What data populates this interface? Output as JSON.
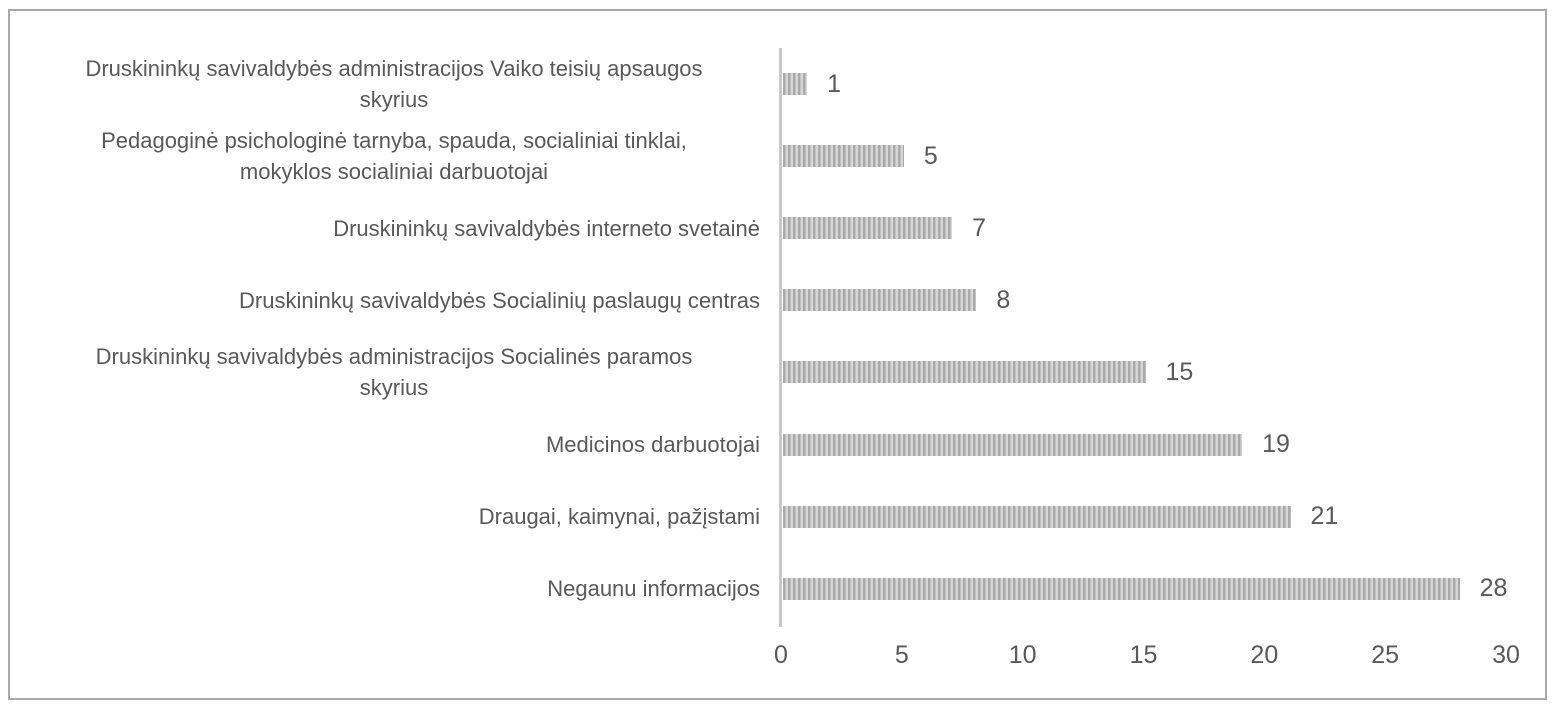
{
  "chart_data": {
    "type": "bar",
    "orientation": "horizontal",
    "title": "",
    "xlabel": "",
    "ylabel": "",
    "categories": [
      "Druskininkų savivaldybės administracijos Vaiko teisių apsaugos\nskyrius",
      "Pedagoginė psichologinė tarnyba, spauda, socialiniai tinklai,\nmokyklos socialiniai darbuotojai",
      "Druskininkų savivaldybės interneto svetainė",
      "Druskininkų savivaldybės Socialinių paslaugų centras",
      "Druskininkų savivaldybės administracijos Socialinės paramos\nskyrius",
      "Medicinos darbuotojai",
      "Draugai, kaimynai, pažįstami",
      "Negaunu informacijos"
    ],
    "values": [
      1,
      5,
      7,
      8,
      15,
      19,
      21,
      28
    ],
    "data_labels_shown": true,
    "xlim": [
      0,
      30
    ],
    "xticks": [
      0,
      5,
      10,
      15,
      20,
      25,
      30
    ],
    "grid": false,
    "legend": false,
    "colors": {
      "bar_stripe_dark": "#a9a9a9",
      "bar_stripe_light": "#d6d6d6",
      "axis_line": "#c9c9c9",
      "text": "#595959",
      "chart_border": "#a9a9a9",
      "background": "#ffffff"
    }
  }
}
